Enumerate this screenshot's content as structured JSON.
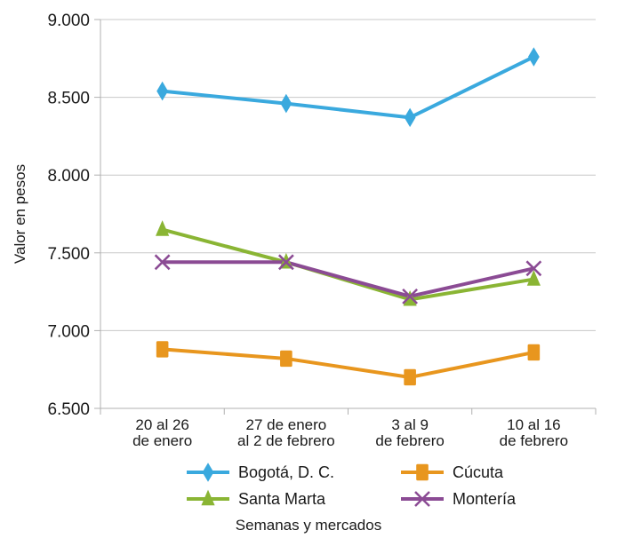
{
  "chart_data": {
    "type": "line",
    "categories": [
      [
        "20 al 26",
        "de enero"
      ],
      [
        "27 de enero",
        "al 2 de febrero"
      ],
      [
        "3 al 9",
        "de febrero"
      ],
      [
        "10 al 16",
        "de febrero"
      ]
    ],
    "yticks": [
      "9.000",
      "8.500",
      "8.000",
      "7.500",
      "7.000",
      "6.500"
    ],
    "ylim": [
      6500,
      9000
    ],
    "xlabel": "Semanas y mercados",
    "ylabel": "Valor en pesos",
    "grid": true,
    "legend_position": "bottom",
    "series": [
      {
        "name": "Bogotá, D. C.",
        "values": [
          8540,
          8460,
          8370,
          8760
        ],
        "color": "#3aa9de",
        "marker": "diamond"
      },
      {
        "name": "Cúcuta",
        "values": [
          6880,
          6820,
          6700,
          6860
        ],
        "color": "#e8961e",
        "marker": "square"
      },
      {
        "name": "Santa Marta",
        "values": [
          7650,
          7440,
          7200,
          7330
        ],
        "color": "#8ab534",
        "marker": "triangle"
      },
      {
        "name": "Montería",
        "values": [
          7440,
          7440,
          7220,
          7400
        ],
        "color": "#8b4b94",
        "marker": "x"
      }
    ]
  }
}
